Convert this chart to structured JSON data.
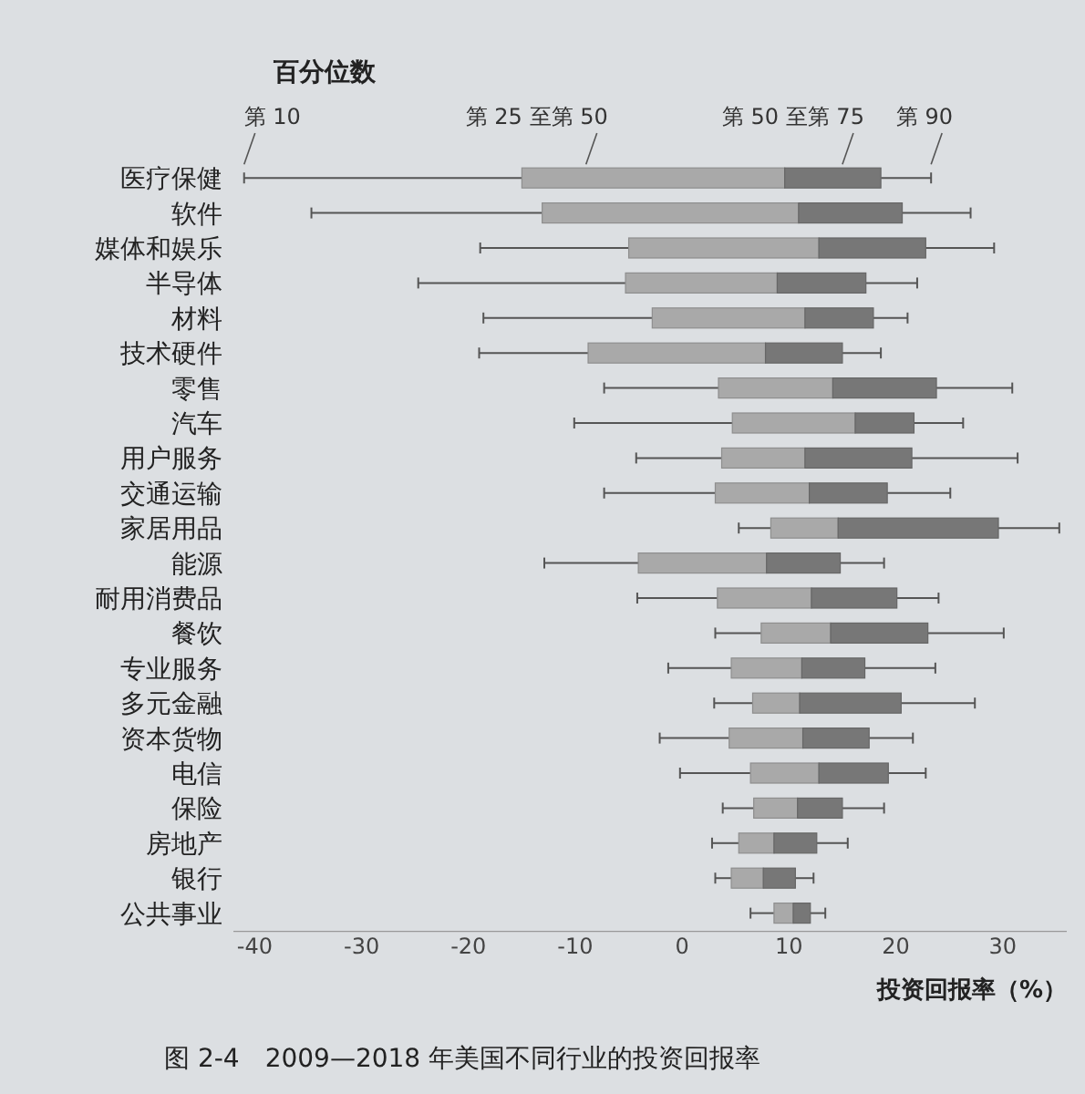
{
  "chart_data": {
    "type": "box",
    "orientation": "horizontal",
    "legend_title": "百分位数",
    "xlabel": "投资回报率（%）",
    "categories": [
      "医疗保健",
      "软件",
      "媒体和娱乐",
      "半导体",
      "材料",
      "技术硬件",
      "零售",
      "汽车",
      "用户服务",
      "交通运输",
      "家居用品",
      "能源",
      "耐用消费品",
      "餐饮",
      "专业服务",
      "多元金融",
      "资本货物",
      "电信",
      "保险",
      "房地产",
      "银行",
      "公共事业"
    ],
    "boxes": [
      {
        "low": -41,
        "q1": -15,
        "median": 9.6,
        "q3": 18.6,
        "high": 23.3
      },
      {
        "low": -34.7,
        "q1": -13.1,
        "median": 10.9,
        "q3": 20.6,
        "high": 27
      },
      {
        "low": -18.9,
        "q1": -5,
        "median": 12.8,
        "q3": 22.8,
        "high": 29.2
      },
      {
        "low": -24.7,
        "q1": -5.3,
        "median": 8.9,
        "q3": 17.2,
        "high": 22
      },
      {
        "low": -18.6,
        "q1": -2.8,
        "median": 11.5,
        "q3": 17.9,
        "high": 21.1
      },
      {
        "low": -19,
        "q1": -8.8,
        "median": 7.8,
        "q3": 15,
        "high": 18.6
      },
      {
        "low": -7.3,
        "q1": 3.4,
        "median": 14.1,
        "q3": 23.8,
        "high": 30.9
      },
      {
        "low": -10.1,
        "q1": 4.7,
        "median": 16.2,
        "q3": 21.7,
        "high": 26.3
      },
      {
        "low": -4.3,
        "q1": 3.7,
        "median": 11.5,
        "q3": 21.5,
        "high": 31.4
      },
      {
        "low": -7.3,
        "q1": 3.1,
        "median": 11.9,
        "q3": 19.2,
        "high": 25.1
      },
      {
        "low": 5.3,
        "q1": 8.3,
        "median": 14.6,
        "q3": 29.6,
        "high": 35.3
      },
      {
        "low": -12.9,
        "q1": -4.1,
        "median": 7.9,
        "q3": 14.8,
        "high": 18.9
      },
      {
        "low": -4.2,
        "q1": 3.3,
        "median": 12.1,
        "q3": 20.1,
        "high": 24
      },
      {
        "low": 3.1,
        "q1": 7.4,
        "median": 13.9,
        "q3": 23,
        "high": 30.1
      },
      {
        "low": -1.3,
        "q1": 4.6,
        "median": 11.2,
        "q3": 17.1,
        "high": 23.7
      },
      {
        "low": 3,
        "q1": 6.6,
        "median": 11,
        "q3": 20.5,
        "high": 27.4
      },
      {
        "low": -2.1,
        "q1": 4.4,
        "median": 11.3,
        "q3": 17.5,
        "high": 21.6
      },
      {
        "low": -0.2,
        "q1": 6.4,
        "median": 12.8,
        "q3": 19.3,
        "high": 22.8
      },
      {
        "low": 3.8,
        "q1": 6.7,
        "median": 10.8,
        "q3": 15,
        "high": 18.9
      },
      {
        "low": 2.8,
        "q1": 5.3,
        "median": 8.6,
        "q3": 12.6,
        "high": 15.5
      },
      {
        "low": 3.1,
        "q1": 4.6,
        "median": 7.6,
        "q3": 10.6,
        "high": 12.3
      },
      {
        "low": 6.4,
        "q1": 8.6,
        "median": 10.4,
        "q3": 12,
        "high": 13.4
      }
    ],
    "xlim": [
      -42,
      36
    ],
    "xticks": [
      -40,
      -30,
      -20,
      -10,
      0,
      10,
      20,
      30
    ],
    "annotations": [
      {
        "text": "第 10",
        "x": -41,
        "y": "医疗保健"
      },
      {
        "text": "第 25 至第 50",
        "x": -9,
        "y": "医疗保健"
      },
      {
        "text": "第 50 至第 75",
        "x": 15,
        "y": "医疗保健"
      },
      {
        "text": "第 90",
        "x": 23.3,
        "y": "医疗保健"
      },
      "图 2-4　2009—2018 年美国不同行业的投资回报率"
    ]
  }
}
